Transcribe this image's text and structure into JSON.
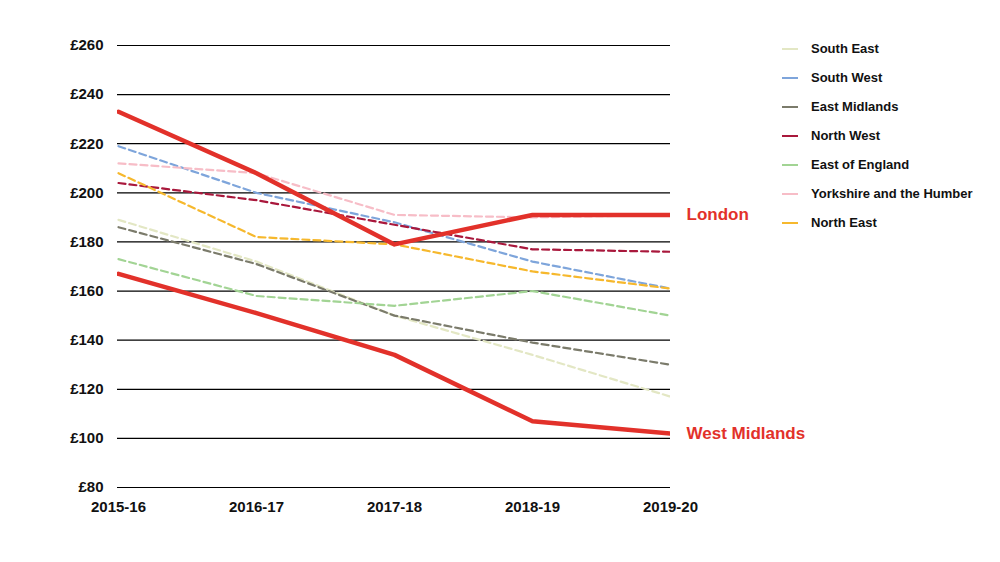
{
  "chart_data": {
    "type": "line",
    "categories": [
      "2015-16",
      "2016-17",
      "2017-18",
      "2018-19",
      "2019-20"
    ],
    "ylim": [
      80,
      260
    ],
    "yticks": [
      {
        "value": 80,
        "label": "£80"
      },
      {
        "value": 100,
        "label": "£100"
      },
      {
        "value": 120,
        "label": "£120"
      },
      {
        "value": 140,
        "label": "£140"
      },
      {
        "value": 160,
        "label": "£160"
      },
      {
        "value": 180,
        "label": "£180"
      },
      {
        "value": 200,
        "label": "£200"
      },
      {
        "value": 220,
        "label": "£220"
      },
      {
        "value": 240,
        "label": "£240"
      },
      {
        "value": 260,
        "label": "£260"
      }
    ],
    "grid": true,
    "legend": "right",
    "series": [
      {
        "name": "South East",
        "color": "#e3e7c4",
        "line_style": "dashed",
        "values": [
          189,
          172,
          150,
          134,
          117
        ]
      },
      {
        "name": "South West",
        "color": "#7ea5db",
        "line_style": "dashed",
        "values": [
          219,
          200,
          188,
          172,
          161
        ]
      },
      {
        "name": "East Midlands",
        "color": "#7b7b6b",
        "line_style": "dashed",
        "values": [
          186,
          171,
          150,
          139,
          130
        ]
      },
      {
        "name": "North West",
        "color": "#a9183c",
        "line_style": "dashed",
        "values": [
          204,
          197,
          187,
          177,
          176
        ]
      },
      {
        "name": "East of England",
        "color": "#a2d494",
        "line_style": "dashed",
        "values": [
          173,
          158,
          154,
          160,
          150
        ]
      },
      {
        "name": "Yorkshire and the Humber",
        "color": "#f7bdc7",
        "line_style": "dashed",
        "values": [
          212,
          208,
          191,
          190,
          191
        ]
      },
      {
        "name": "North East",
        "color": "#f6b82d",
        "line_style": "dashed",
        "values": [
          208,
          182,
          179,
          168,
          161
        ]
      },
      {
        "name": "London",
        "color": "#e2312a",
        "line_style": "solid",
        "values": [
          233,
          208,
          179,
          191,
          191
        ]
      },
      {
        "name": "West Midlands",
        "color": "#e2312a",
        "line_style": "solid",
        "values": [
          167,
          151,
          134,
          107,
          102
        ]
      }
    ]
  }
}
